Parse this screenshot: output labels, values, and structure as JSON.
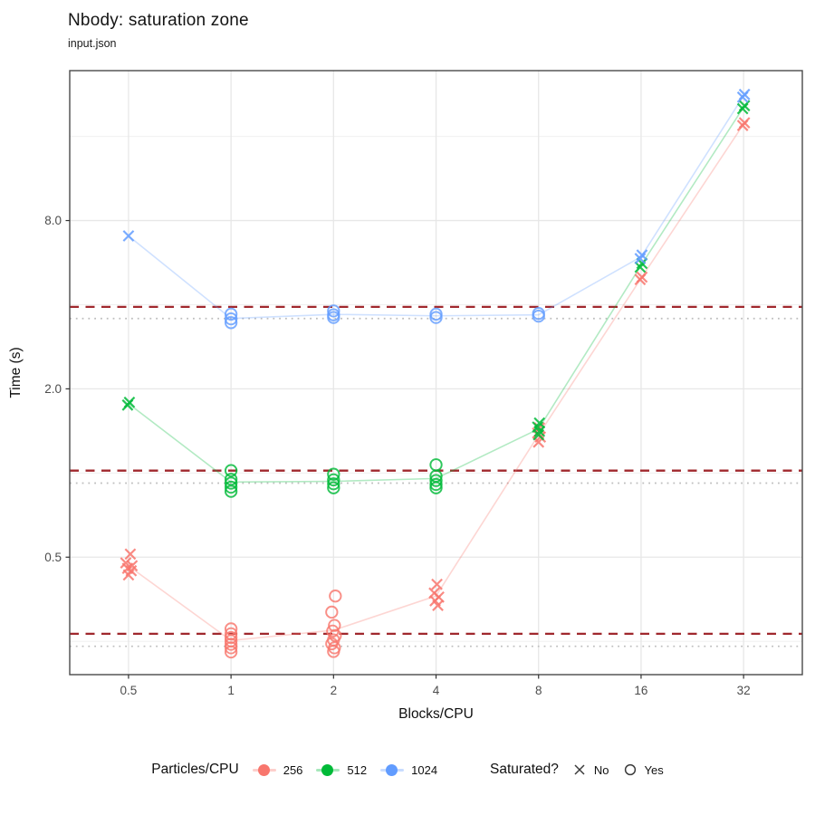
{
  "header": {
    "title": "Nbody: saturation zone",
    "subtitle": "input.json"
  },
  "chart_data": {
    "type": "scatter",
    "title": "Nbody: saturation zone",
    "subtitle": "input.json",
    "xlabel": "Blocks/CPU",
    "ylabel": "Time (s)",
    "x_scale": "log2",
    "y_scale": "log10",
    "x_domain": [
      0.336,
      47.6
    ],
    "y_domain": [
      0.19,
      27.5
    ],
    "x_ticks": [
      0.5,
      1,
      2,
      4,
      8,
      16,
      32
    ],
    "x_tick_labels": [
      "0.5",
      "1",
      "2",
      "4",
      "8",
      "16",
      "32"
    ],
    "y_ticks": [
      0.5,
      2.0,
      8.0
    ],
    "y_tick_labels": [
      "0.5",
      "2.0",
      "8.0"
    ],
    "y_minor_gridlines": [
      0.25,
      1,
      4,
      16
    ],
    "grid_major_color": "#E7E7E7",
    "grid_minor_color": "#F0F0F0",
    "panel_border_color": "#4A4A4A",
    "tick_label_color": "#4D4D4D",
    "axis_title_color": "#0F0F0F",
    "threshold_lines": {
      "dashed_color": "#A0282D",
      "dotted_color": "#BDBDBD",
      "dashed_values": [
        3.93,
        1.02,
        0.266
      ],
      "dotted_values": [
        3.57,
        0.92,
        0.24
      ]
    },
    "series": [
      {
        "name": "256",
        "color": "#F8766D",
        "points": [
          [
            0.5,
            0.513,
            0,
            2
          ],
          [
            0.5,
            0.477,
            0,
            -3
          ],
          [
            0.5,
            0.466,
            0,
            4
          ],
          [
            0.5,
            0.456,
            0,
            -1
          ],
          [
            0.5,
            0.447,
            0,
            3
          ],
          [
            0.5,
            0.432,
            0,
            0
          ],
          [
            1,
            0.277,
            1,
            0
          ],
          [
            1,
            0.266,
            1,
            0
          ],
          [
            1,
            0.258,
            1,
            0
          ],
          [
            1,
            0.251,
            1,
            0
          ],
          [
            1,
            0.244,
            1,
            0
          ],
          [
            1,
            0.237,
            1,
            0
          ],
          [
            1,
            0.229,
            1,
            0
          ],
          [
            2,
            0.363,
            1,
            2
          ],
          [
            2,
            0.318,
            1,
            -2
          ],
          [
            2,
            0.285,
            1,
            1
          ],
          [
            2,
            0.272,
            1,
            -1
          ],
          [
            2,
            0.262,
            1,
            2
          ],
          [
            2,
            0.253,
            1,
            0
          ],
          [
            2,
            0.245,
            1,
            -2
          ],
          [
            2,
            0.237,
            1,
            1
          ],
          [
            2,
            0.23,
            1,
            0
          ],
          [
            4,
            0.4,
            0,
            1
          ],
          [
            4,
            0.372,
            0,
            -2
          ],
          [
            4,
            0.36,
            0,
            3
          ],
          [
            4,
            0.349,
            0,
            -1
          ],
          [
            4,
            0.336,
            0,
            2
          ],
          [
            8,
            1.45,
            0,
            1
          ],
          [
            8,
            1.39,
            0,
            -1
          ],
          [
            8,
            1.345,
            0,
            2
          ],
          [
            8,
            1.29,
            0,
            0
          ],
          [
            16,
            5.02,
            0,
            1
          ],
          [
            16,
            4.92,
            0,
            -1
          ],
          [
            32,
            17.9,
            0,
            1
          ],
          [
            32,
            17.5,
            0,
            -1
          ]
        ]
      },
      {
        "name": "512",
        "color": "#00BA38",
        "points": [
          [
            0.5,
            1.79,
            0,
            1
          ],
          [
            0.5,
            1.75,
            0,
            -1
          ],
          [
            1,
            1.02,
            1,
            0
          ],
          [
            1,
            0.95,
            1,
            0
          ],
          [
            1,
            0.92,
            1,
            0
          ],
          [
            1,
            0.89,
            1,
            0
          ],
          [
            1,
            0.86,
            1,
            0
          ],
          [
            2,
            0.99,
            1,
            0
          ],
          [
            2,
            0.945,
            1,
            0
          ],
          [
            2,
            0.915,
            1,
            0
          ],
          [
            2,
            0.885,
            1,
            0
          ],
          [
            4,
            1.07,
            1,
            0
          ],
          [
            4,
            0.975,
            1,
            0
          ],
          [
            4,
            0.94,
            1,
            0
          ],
          [
            4,
            0.91,
            1,
            0
          ],
          [
            4,
            0.885,
            1,
            0
          ],
          [
            8,
            1.51,
            0,
            1
          ],
          [
            8,
            1.46,
            0,
            -1
          ],
          [
            8,
            1.41,
            0,
            1
          ],
          [
            8,
            1.37,
            0,
            0
          ],
          [
            16,
            5.62,
            0,
            1
          ],
          [
            16,
            5.45,
            0,
            -1
          ],
          [
            32,
            20.6,
            0,
            1
          ],
          [
            32,
            20.1,
            0,
            -1
          ]
        ]
      },
      {
        "name": "1024",
        "color": "#619CFF",
        "points": [
          [
            0.5,
            7.05,
            0,
            0
          ],
          [
            1,
            3.7,
            1,
            0
          ],
          [
            1,
            3.56,
            1,
            0
          ],
          [
            1,
            3.45,
            1,
            0
          ],
          [
            2,
            3.8,
            1,
            0
          ],
          [
            2,
            3.68,
            1,
            0
          ],
          [
            2,
            3.6,
            1,
            0
          ],
          [
            4,
            3.7,
            1,
            0
          ],
          [
            4,
            3.6,
            1,
            0
          ],
          [
            8,
            3.72,
            1,
            0
          ],
          [
            8,
            3.64,
            1,
            0
          ],
          [
            16,
            6.02,
            0,
            1
          ],
          [
            16,
            5.85,
            0,
            -1
          ],
          [
            32,
            22.6,
            0,
            1
          ],
          [
            32,
            22.1,
            0,
            -1
          ]
        ]
      }
    ]
  },
  "legend": {
    "color": {
      "title": "Particles/CPU",
      "items": [
        {
          "label": "256",
          "color": "#F8766D"
        },
        {
          "label": "512",
          "color": "#00BA38"
        },
        {
          "label": "1024",
          "color": "#619CFF"
        }
      ]
    },
    "shape": {
      "title": "Saturated?",
      "items": [
        {
          "label": "No",
          "glyph": "x-cross"
        },
        {
          "label": "Yes",
          "glyph": "open-circle"
        }
      ]
    }
  }
}
